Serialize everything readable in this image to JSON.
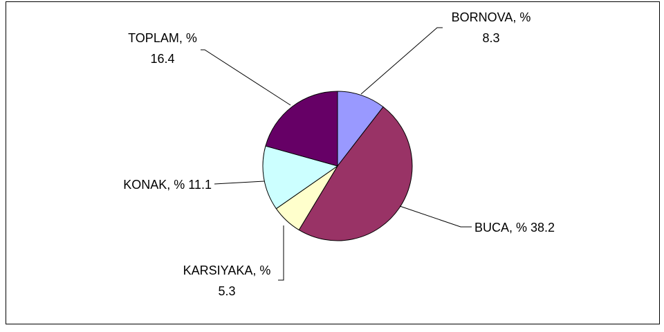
{
  "chart_data": {
    "type": "pie",
    "values": [
      8.3,
      38.2,
      5.3,
      11.1,
      16.4
    ],
    "value_labels": [
      "BORNOVA, % 8.3",
      "BUCA, % 38.2",
      "KARSIYAKA, % 5.3",
      "KONAK, % 11.1",
      "TOPLAM, % 16.4"
    ],
    "colors": [
      "#9999ff",
      "#993366",
      "#ffffcc",
      "#ccffff",
      "#660066"
    ]
  }
}
